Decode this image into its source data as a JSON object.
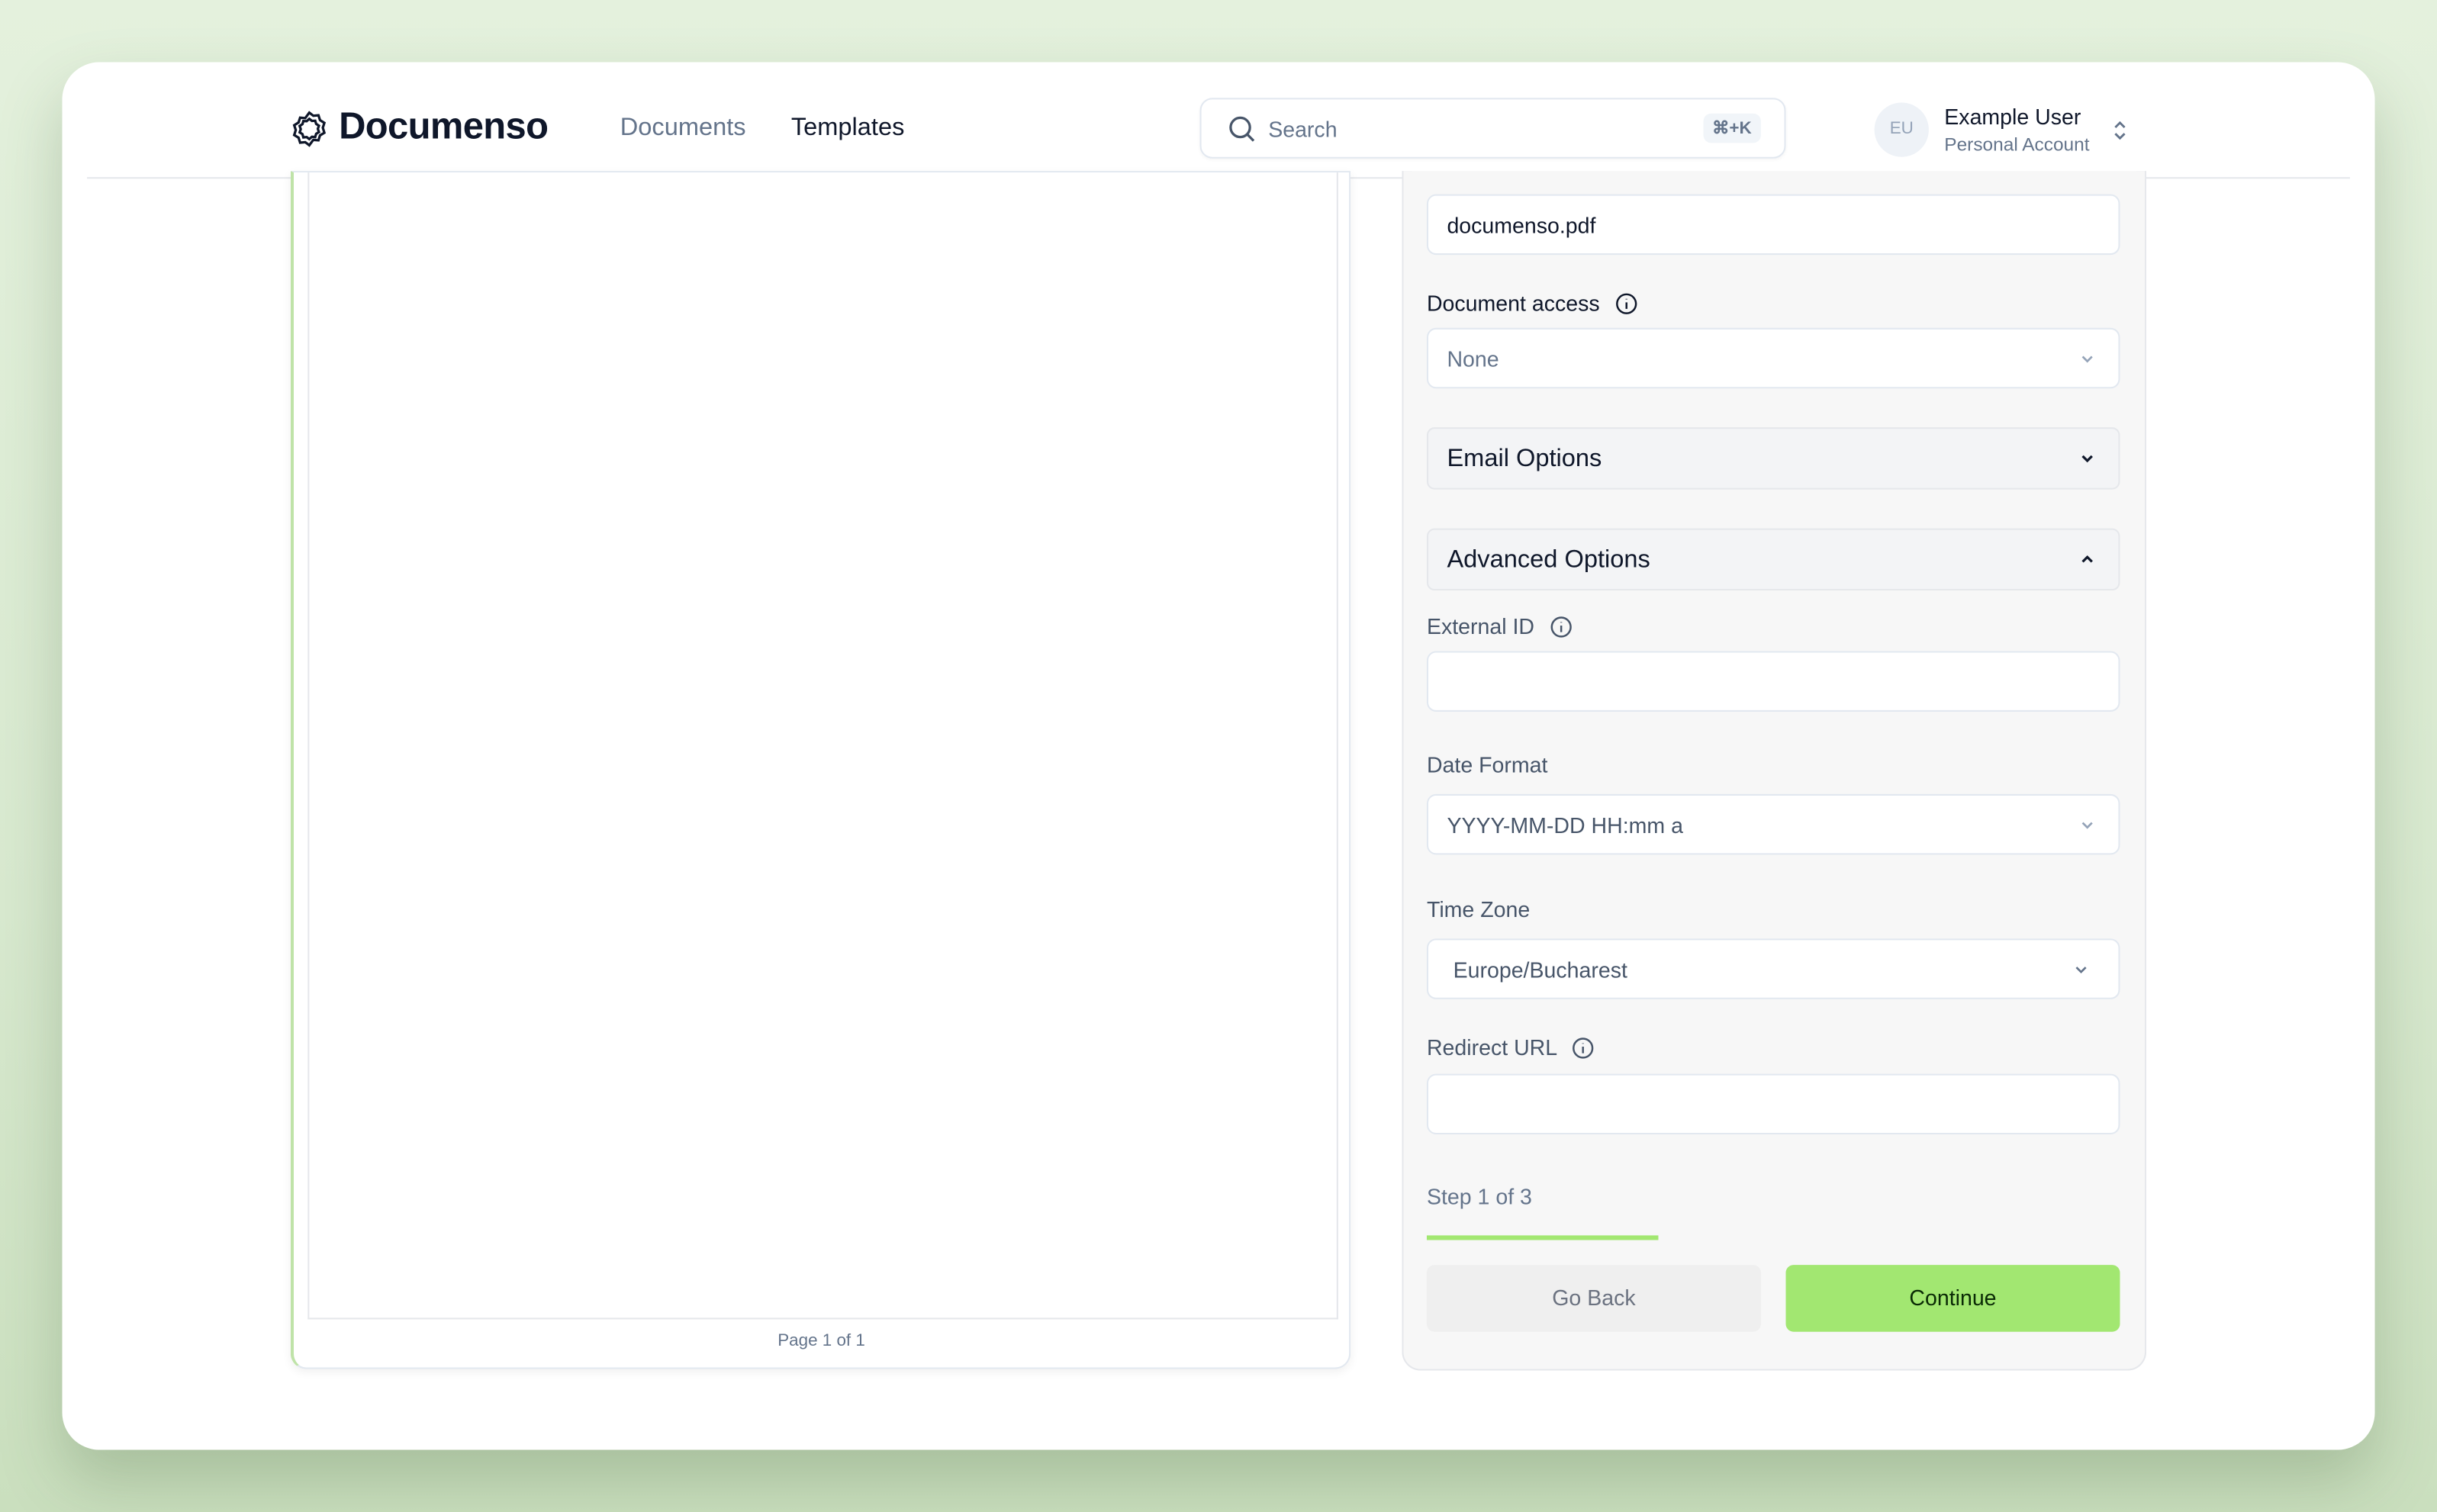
{
  "header": {
    "brand": "Documenso",
    "nav": [
      {
        "label": "Documents",
        "active": false
      },
      {
        "label": "Templates",
        "active": true
      }
    ],
    "search": {
      "placeholder": "Search",
      "shortcut": "⌘+K"
    },
    "user": {
      "initials": "EU",
      "name": "Example User",
      "account": "Personal Account"
    }
  },
  "viewer": {
    "page_indicator": "Page 1 of 1"
  },
  "form": {
    "title_value": "documenso.pdf",
    "document_access": {
      "label": "Document access",
      "value": "None"
    },
    "email_options": {
      "label": "Email Options",
      "expanded": false
    },
    "advanced_options": {
      "label": "Advanced Options",
      "expanded": true
    },
    "external_id": {
      "label": "External ID",
      "value": ""
    },
    "date_format": {
      "label": "Date Format",
      "value": "YYYY-MM-DD HH:mm a"
    },
    "time_zone": {
      "label": "Time Zone",
      "value": "Europe/Bucharest"
    },
    "redirect_url": {
      "label": "Redirect URL",
      "value": ""
    },
    "step": {
      "text": "Step 1 of 3",
      "current": 1,
      "total": 3
    },
    "go_back": "Go Back",
    "continue": "Continue"
  },
  "colors": {
    "accent": "#a2e771",
    "progress": "#a2e771"
  }
}
